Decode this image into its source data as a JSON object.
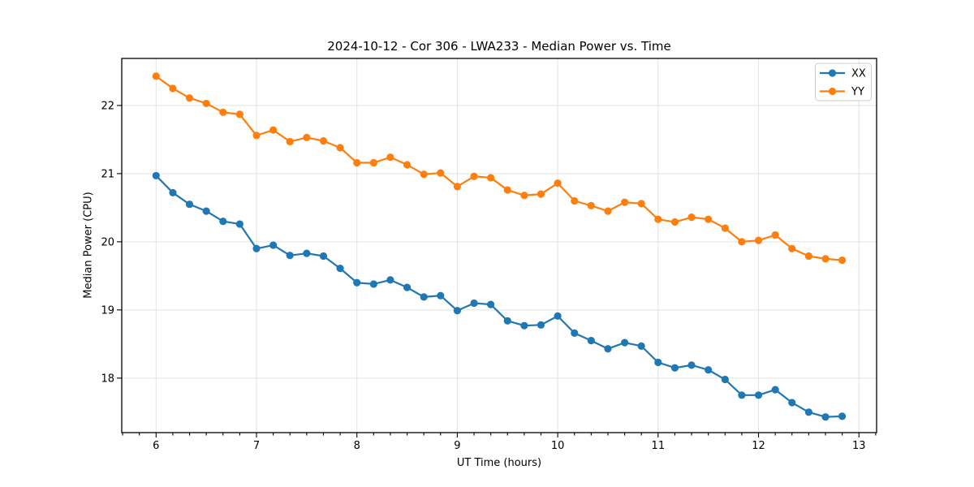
{
  "figure": {
    "title": "2024-10-12 - Cor 306 - LWA233 - Median Power vs. Time",
    "xlabel": "UT Time (hours)",
    "ylabel": "Median Power (CPU)"
  },
  "colors": {
    "background": "#ffffff",
    "grid": "#e2e2e2",
    "spine": "#000000",
    "tick": "#000000",
    "legend_border": "#cccccc",
    "series_xx": "#1f77b4",
    "series_yy": "#ff7f0e"
  },
  "chart_data": {
    "type": "line",
    "title": "2024-10-12 - Cor 306 - LWA233 - Median Power vs. Time",
    "xlabel": "UT Time (hours)",
    "ylabel": "Median Power (CPU)",
    "xlim": [
      5.658,
      13.176
    ],
    "ylim": [
      17.2,
      22.69
    ],
    "x_ticks": [
      6,
      7,
      8,
      9,
      10,
      11,
      12,
      13
    ],
    "y_ticks": [
      18,
      19,
      20,
      21,
      22
    ],
    "x_minor_tick_step_hours": 0.16667,
    "grid": true,
    "legend_position": "upper right",
    "marker": "circle",
    "x": [
      6.0,
      6.167,
      6.333,
      6.5,
      6.667,
      6.833,
      7.0,
      7.167,
      7.333,
      7.5,
      7.667,
      7.833,
      8.0,
      8.167,
      8.333,
      8.5,
      8.667,
      8.833,
      9.0,
      9.167,
      9.333,
      9.5,
      9.667,
      9.833,
      10.0,
      10.167,
      10.333,
      10.5,
      10.667,
      10.833,
      11.0,
      11.167,
      11.333,
      11.5,
      11.667,
      11.833,
      12.0,
      12.167,
      12.333,
      12.5,
      12.667,
      12.833
    ],
    "series": [
      {
        "name": "XX",
        "color": "#1f77b4",
        "values": [
          20.97,
          20.72,
          20.55,
          20.45,
          20.3,
          20.26,
          19.9,
          19.95,
          19.8,
          19.83,
          19.79,
          19.61,
          19.4,
          19.38,
          19.44,
          19.33,
          19.19,
          19.21,
          18.99,
          19.1,
          19.08,
          18.84,
          18.77,
          18.78,
          18.91,
          18.66,
          18.55,
          18.43,
          18.52,
          18.47,
          18.23,
          18.15,
          18.19,
          18.12,
          17.98,
          17.75,
          17.75,
          17.83,
          17.64,
          17.5,
          17.43,
          17.44
        ]
      },
      {
        "name": "YY",
        "color": "#ff7f0e",
        "values": [
          22.43,
          22.25,
          22.11,
          22.03,
          21.9,
          21.87,
          21.56,
          21.64,
          21.47,
          21.53,
          21.48,
          21.38,
          21.16,
          21.16,
          21.24,
          21.13,
          20.99,
          21.01,
          20.81,
          20.96,
          20.94,
          20.76,
          20.68,
          20.7,
          20.86,
          20.6,
          20.53,
          20.45,
          20.58,
          20.56,
          20.33,
          20.29,
          20.36,
          20.33,
          20.2,
          20.0,
          20.02,
          20.1,
          19.9,
          19.79,
          19.75,
          19.73
        ]
      }
    ]
  }
}
